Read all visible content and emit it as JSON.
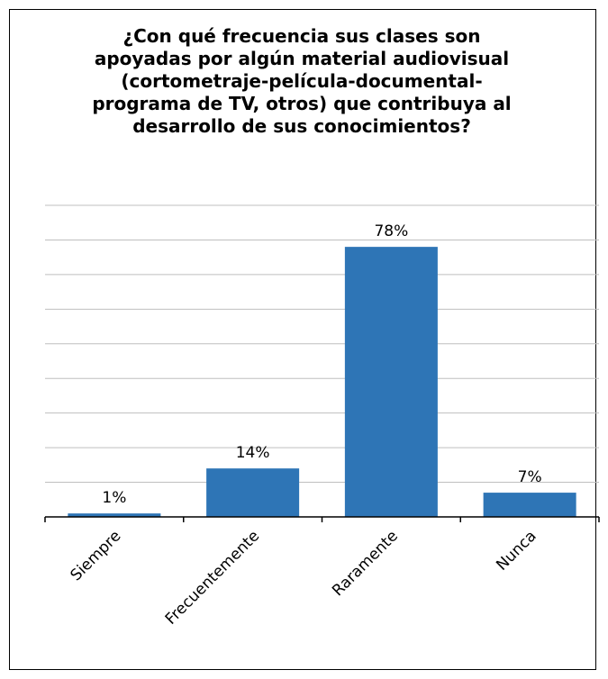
{
  "chart_data": {
    "type": "bar",
    "title": "¿Con qué frecuencia sus clases son\napoyadas por algún material audiovisual\n(cortometraje-película-documental-\nprograma de TV, otros) que contribuya al\ndesarrollo de sus conocimientos?",
    "categories": [
      "Siempre",
      "Frecuentemente",
      "Raramente",
      "Nunca"
    ],
    "values": [
      1,
      14,
      78,
      7
    ],
    "data_labels": [
      "1%",
      "14%",
      "78%",
      "7%"
    ],
    "ylim": [
      0,
      90
    ],
    "xlabel": "",
    "ylabel": "",
    "grid": true,
    "bar_color": "#2e75b6",
    "grid_color": "#bfbfbf"
  }
}
